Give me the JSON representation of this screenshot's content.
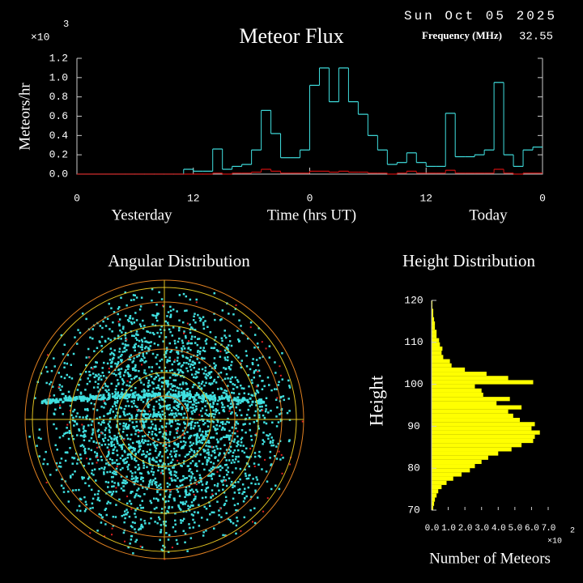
{
  "chart_data": [
    {
      "type": "step",
      "title": "Meteor Flux",
      "date": "Sun Oct 05 2025",
      "frequency_label": "Frequency (MHz)",
      "frequency": 32.55,
      "y_multiplier": {
        "base": "×10",
        "exponent": "3"
      },
      "ylabel": "Meteors/hr",
      "xlabel": "Time (hrs UT)",
      "left_label": "Yesterday",
      "right_label": "Today",
      "xlim": [
        0,
        48
      ],
      "xticks": [
        0,
        12,
        {
          "value": 24,
          "label": "0"
        },
        {
          "value": 36,
          "label": "12"
        },
        {
          "value": 48,
          "label": "0"
        }
      ],
      "ylim": [
        0,
        1.2
      ],
      "yticks": [
        {
          "value": 0,
          "label": "0.0"
        },
        {
          "value": 0.2,
          "label": "0.2"
        },
        {
          "value": 0.4,
          "label": "0.4"
        },
        {
          "value": 0.6,
          "label": "0.6"
        },
        {
          "value": 0.8,
          "label": "0.8"
        },
        {
          "value": 1,
          "label": "1.0"
        },
        {
          "value": 1.2,
          "label": "1.2"
        }
      ],
      "x": [
        0,
        1,
        2,
        3,
        4,
        5,
        6,
        7,
        8,
        9,
        10,
        11,
        12,
        13,
        14,
        15,
        16,
        17,
        18,
        19,
        20,
        21,
        22,
        23,
        24,
        25,
        26,
        27,
        28,
        29,
        30,
        31,
        32,
        33,
        34,
        35,
        36,
        37,
        38,
        39,
        40,
        41,
        42,
        43,
        44,
        45,
        46,
        47
      ],
      "series": [
        {
          "color": "#40e0e0",
          "values": [
            0,
            0,
            0,
            0,
            0,
            0,
            0,
            0,
            0,
            0,
            0,
            0.05,
            0.03,
            0.03,
            0.26,
            0.05,
            0.08,
            0.1,
            0.25,
            0.66,
            0.42,
            0.17,
            0.17,
            0.25,
            0.92,
            1.1,
            0.75,
            1.1,
            0.75,
            0.62,
            0.4,
            0.25,
            0.1,
            0.12,
            0.22,
            0.12,
            0.08,
            0.08,
            0.63,
            0.18,
            0.18,
            0.2,
            0.25,
            0.95,
            0.2,
            0.08,
            0.25,
            0.28
          ]
        },
        {
          "color": "#d01010",
          "values": [
            0,
            0,
            0,
            0,
            0,
            0,
            0,
            0,
            0,
            0,
            0,
            0,
            0,
            0,
            0.01,
            0,
            0.01,
            0.01,
            0.02,
            0.05,
            0.03,
            0.01,
            0.01,
            0.01,
            0.03,
            0.03,
            0.02,
            0.03,
            0.02,
            0.02,
            0.01,
            0.01,
            0,
            0.01,
            0.03,
            0.01,
            0.01,
            0.01,
            0.04,
            0.01,
            0.01,
            0.01,
            0.01,
            0.05,
            0.01,
            0,
            0.01,
            0.01
          ]
        }
      ]
    },
    {
      "type": "polar",
      "title": "Angular Distribution"
    },
    {
      "type": "hbar",
      "title": "Height Distribution",
      "ylabel": "Height",
      "xlabel": "Number of Meteors",
      "x_multiplier": {
        "base": "×10",
        "exponent": "2"
      },
      "color": "#ffff00",
      "ylim": [
        70,
        120
      ],
      "yticks": [
        70,
        80,
        90,
        100,
        110,
        120
      ],
      "xlim": [
        0,
        7
      ],
      "xticks": [
        {
          "value": 0,
          "label": "0.0"
        },
        {
          "value": 1,
          "label": "1.0"
        },
        {
          "value": 2,
          "label": "2.0"
        },
        {
          "value": 3,
          "label": "3.0"
        },
        {
          "value": 4,
          "label": "4.0"
        },
        {
          "value": 5,
          "label": "5.0"
        },
        {
          "value": 6,
          "label": "6.0"
        },
        {
          "value": 7,
          "label": "7.0"
        }
      ],
      "y": [
        70,
        71,
        72,
        73,
        74,
        75,
        76,
        77,
        78,
        79,
        80,
        81,
        82,
        83,
        84,
        85,
        86,
        87,
        88,
        89,
        90,
        91,
        92,
        93,
        94,
        95,
        96,
        97,
        98,
        99,
        100,
        101,
        102,
        103,
        104,
        105,
        106,
        107,
        108,
        109,
        110,
        111,
        112,
        113,
        114,
        115,
        116,
        117,
        118,
        119
      ],
      "values": [
        0.1,
        0.15,
        0.2,
        0.3,
        0.4,
        0.6,
        0.9,
        1.3,
        1.8,
        2.3,
        2.6,
        3.0,
        3.4,
        4.0,
        4.8,
        5.4,
        6.1,
        6.2,
        6.5,
        6.0,
        6.2,
        5.3,
        4.9,
        4.6,
        5.4,
        3.9,
        4.7,
        3.1,
        3.0,
        2.6,
        6.1,
        4.6,
        3.3,
        2.0,
        1.2,
        1.1,
        0.7,
        0.6,
        0.65,
        0.5,
        0.45,
        0.3,
        0.3,
        0.2,
        0.2,
        0.15,
        0.1,
        0.1,
        0.05,
        0.05
      ]
    }
  ]
}
